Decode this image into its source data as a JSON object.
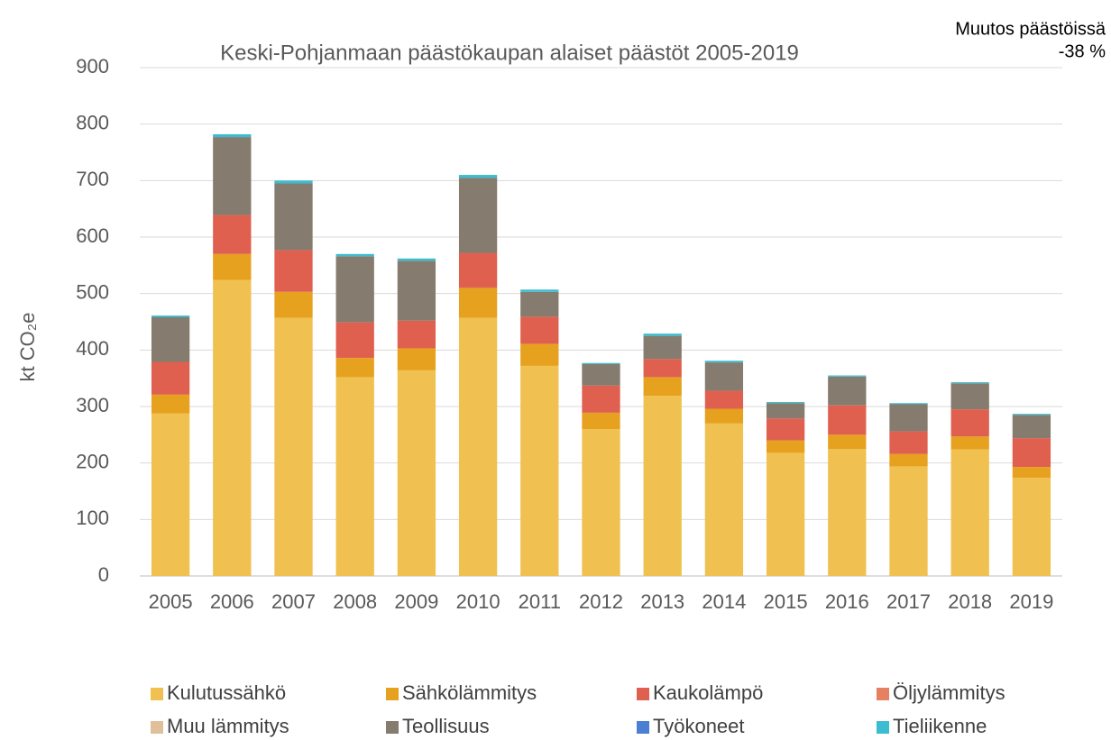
{
  "chart_data": {
    "type": "stacked_bar",
    "title": "Keski-Pohjanmaan päästökaupan alaiset päästöt 2005-2019",
    "annotation": [
      "Muutos päästöissä",
      "-38 %"
    ],
    "y_label": "kt CO₂e",
    "categories": [
      "2005",
      "2006",
      "2007",
      "2008",
      "2009",
      "2010",
      "2011",
      "2012",
      "2013",
      "2014",
      "2015",
      "2016",
      "2017",
      "2018",
      "2019"
    ],
    "series": [
      {
        "name": "Kulutussähkö",
        "color": "#f0c050",
        "values": [
          288,
          524,
          457,
          352,
          364,
          457,
          372,
          260,
          319,
          270,
          218,
          225,
          194,
          224,
          174
        ]
      },
      {
        "name": "Sähkölämmitys",
        "color": "#e6a11f",
        "values": [
          33,
          46,
          46,
          34,
          39,
          53,
          39,
          29,
          33,
          26,
          22,
          25,
          22,
          23,
          19
        ]
      },
      {
        "name": "Kaukolämpö",
        "color": "#e06050",
        "values": [
          58,
          69,
          74,
          63,
          49,
          62,
          48,
          48,
          32,
          32,
          39,
          52,
          40,
          48,
          51
        ]
      },
      {
        "name": "Öljylämmitys",
        "color": "#e58060",
        "values": [
          0,
          0,
          0,
          0,
          0,
          0,
          0,
          0,
          0,
          0,
          0,
          0,
          0,
          0,
          0
        ]
      },
      {
        "name": "Muu lämmitys",
        "color": "#dfc09a",
        "values": [
          0,
          0,
          0,
          0,
          0,
          0,
          0,
          0,
          0,
          0,
          0,
          0,
          0,
          0,
          0
        ]
      },
      {
        "name": "Teollisuus",
        "color": "#857b6e",
        "values": [
          79,
          138,
          118,
          117,
          106,
          133,
          44,
          38,
          41,
          50,
          27,
          51,
          48,
          46,
          41
        ]
      },
      {
        "name": "Työkoneet",
        "color": "#4a7fd4",
        "values": [
          0,
          0,
          0,
          0,
          0,
          0,
          0,
          0,
          0,
          0,
          0,
          0,
          0,
          0,
          0
        ]
      },
      {
        "name": "Tieliikenne",
        "color": "#3cbcd0",
        "values": [
          3,
          5,
          5,
          4,
          4,
          5,
          4,
          2,
          4,
          3,
          2,
          2,
          2,
          2,
          2
        ]
      }
    ],
    "ylim": [
      0,
      900
    ],
    "yticks": [
      0,
      100,
      200,
      300,
      400,
      500,
      600,
      700,
      800,
      900
    ],
    "grid": true,
    "legend": "bottom"
  }
}
